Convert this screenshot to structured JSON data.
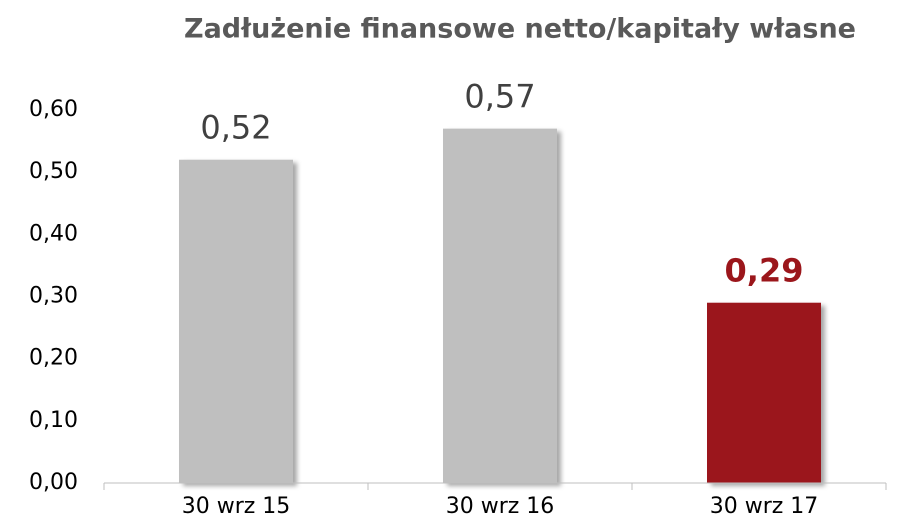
{
  "chart_data": {
    "type": "bar",
    "title": "Zadłużenie finansowe netto/kapitały własne",
    "categories": [
      "30 wrz 15",
      "30 wrz 16",
      "30 wrz 17"
    ],
    "values": [
      0.52,
      0.57,
      0.29
    ],
    "value_labels": [
      "0,52",
      "0,57",
      "0,29"
    ],
    "colors": [
      "#bfbfbf",
      "#bfbfbf",
      "#9b161b"
    ],
    "label_colors": [
      "#404040",
      "#404040",
      "#9b161b"
    ],
    "label_bold": [
      false,
      false,
      true
    ],
    "ylim": [
      0,
      0.6
    ],
    "yticks": [
      {
        "value": 0,
        "label": "0,00"
      },
      {
        "value": 0.1,
        "label": "0,10"
      },
      {
        "value": 0.2,
        "label": "0,20"
      },
      {
        "value": 0.3,
        "label": "0,30"
      },
      {
        "value": 0.4,
        "label": "0,40"
      },
      {
        "value": 0.5,
        "label": "0,50"
      },
      {
        "value": 0.6,
        "label": "0,60"
      }
    ],
    "grid": false
  }
}
